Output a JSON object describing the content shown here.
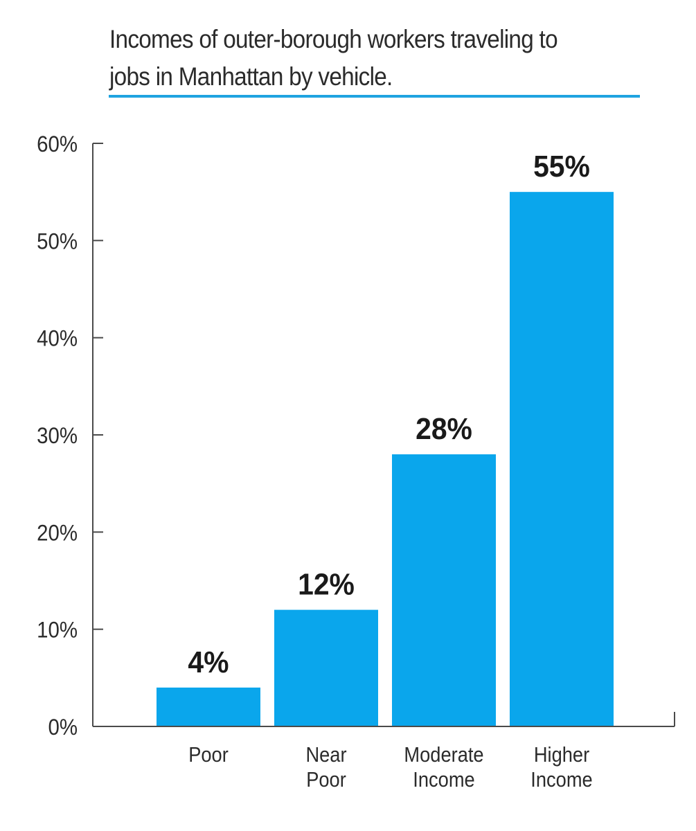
{
  "chart_data": {
    "type": "bar",
    "title": "Incomes of outer-borough workers traveling to jobs in Manhattan by vehicle.",
    "categories": [
      "Poor",
      "Near Poor",
      "Moderate Income",
      "Higher Income"
    ],
    "category_lines": [
      [
        "Poor"
      ],
      [
        "Near",
        "Poor"
      ],
      [
        "Moderate",
        "Income"
      ],
      [
        "Higher",
        "Income"
      ]
    ],
    "values": [
      4,
      12,
      28,
      55
    ],
    "value_labels": [
      "4%",
      "12%",
      "28%",
      "55%"
    ],
    "ylim": [
      0,
      60
    ],
    "yticks": [
      0,
      10,
      20,
      30,
      40,
      50,
      60
    ],
    "ytick_labels": [
      "0%",
      "10%",
      "20%",
      "30%",
      "40%",
      "50%",
      "60%"
    ],
    "xlabel": "",
    "ylabel": "",
    "grid": false,
    "legend": "none",
    "colors": {
      "bar": "#0aa6ec",
      "axis": "#4a4a4a",
      "title_rule": "#1fa3e0"
    }
  }
}
